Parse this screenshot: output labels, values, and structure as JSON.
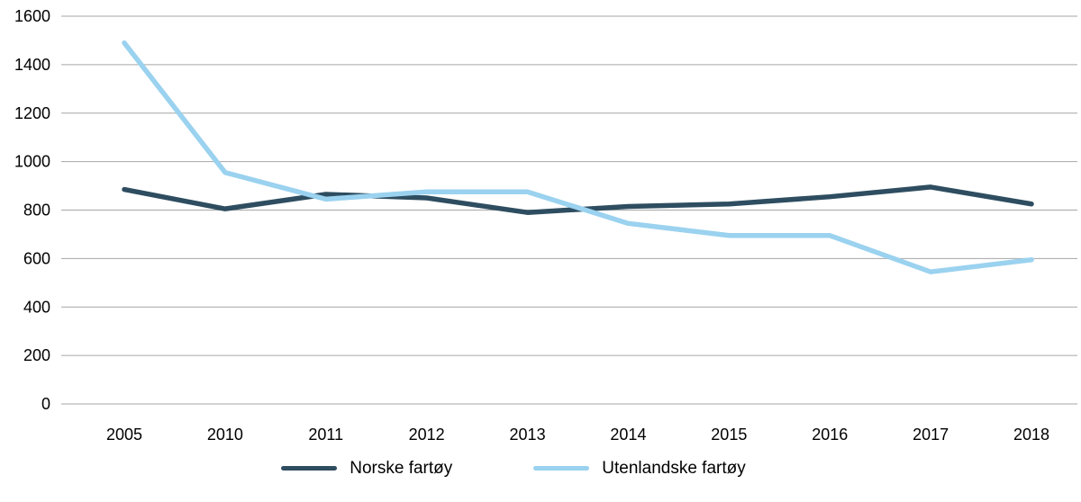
{
  "chart_data": {
    "type": "line",
    "title": "",
    "xlabel": "",
    "ylabel": "",
    "categories": [
      "2005",
      "2010",
      "2011",
      "2012",
      "2013",
      "2014",
      "2015",
      "2016",
      "2017",
      "2018"
    ],
    "series": [
      {
        "name": "Norske fartøy",
        "color": "#2e4d60",
        "values": [
          885,
          805,
          865,
          850,
          790,
          815,
          825,
          855,
          895,
          825
        ]
      },
      {
        "name": "Utenlandske fartøy",
        "color": "#9ad2ef",
        "values": [
          1490,
          955,
          845,
          875,
          875,
          745,
          695,
          695,
          545,
          595
        ]
      }
    ],
    "ylim": [
      0,
      1600
    ],
    "ytick_step": 200,
    "ytick_labels": [
      "0",
      "200",
      "400",
      "600",
      "800",
      "1000",
      "1200",
      "1400",
      "1600"
    ],
    "grid": true,
    "gridline_color": "#a6a6a6",
    "text_color": "#000000",
    "legend_position": "bottom"
  }
}
